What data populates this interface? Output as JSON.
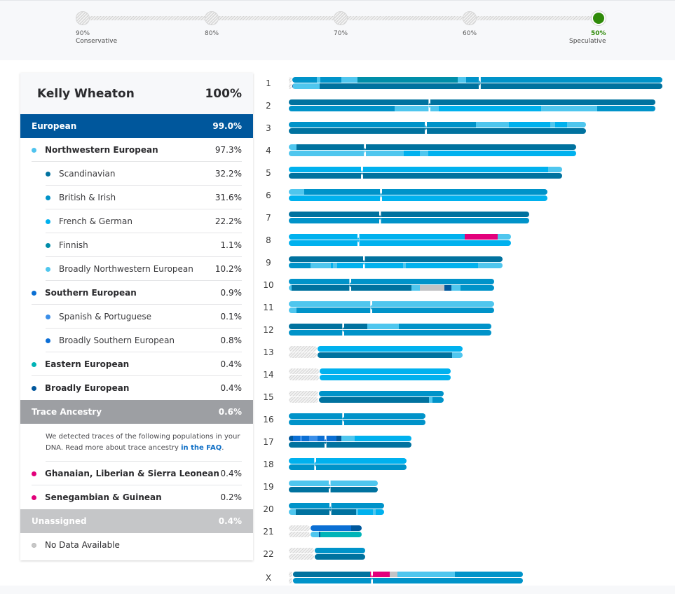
{
  "confidence": {
    "stops": [
      {
        "value": "90%",
        "sublabel": "Conservative",
        "active": false
      },
      {
        "value": "80%",
        "sublabel": "",
        "active": false
      },
      {
        "value": "70%",
        "sublabel": "",
        "active": false
      },
      {
        "value": "60%",
        "sublabel": "",
        "active": false
      },
      {
        "value": "50%",
        "sublabel": "Speculative",
        "active": true
      }
    ],
    "active_color": "#2f8a09"
  },
  "panel": {
    "name": "Kelly Wheaton",
    "total": "100%",
    "european": {
      "label": "European",
      "value": "99.0%"
    },
    "rows_european": [
      {
        "level": 1,
        "label": "Northwestern European",
        "value": "97.3%",
        "color": "#4fc3ee"
      },
      {
        "level": 2,
        "label": "Scandinavian",
        "value": "32.2%",
        "color": "#00729f"
      },
      {
        "level": 2,
        "label": "British & Irish",
        "value": "31.6%",
        "color": "#0092c8"
      },
      {
        "level": 2,
        "label": "French & German",
        "value": "22.2%",
        "color": "#00b0ee"
      },
      {
        "level": 2,
        "label": "Finnish",
        "value": "1.1%",
        "color": "#008ca8"
      },
      {
        "level": 2,
        "label": "Broadly Northwestern European",
        "value": "10.2%",
        "color": "#4fc6ee"
      },
      {
        "level": 1,
        "label": "Southern European",
        "value": "0.9%",
        "color": "#0a6fd3"
      },
      {
        "level": 2,
        "label": "Spanish & Portuguese",
        "value": "0.1%",
        "color": "#3b8ee8"
      },
      {
        "level": 2,
        "label": "Broadly Southern European",
        "value": "0.8%",
        "color": "#0b6ed6"
      },
      {
        "level": 1,
        "label": "Eastern European",
        "value": "0.4%",
        "color": "#00b3b6"
      },
      {
        "level": 1,
        "label": "Broadly European",
        "value": "0.4%",
        "color": "#00579c"
      }
    ],
    "trace": {
      "label": "Trace Ancestry",
      "value": "0.6%"
    },
    "trace_note": "We detected traces of the following populations in your DNA. Read more about trace ancestry ",
    "trace_link": "in the FAQ",
    "trace_note_end": ".",
    "rows_trace": [
      {
        "level": 1,
        "label": "Ghanaian, Liberian & Sierra Leonean",
        "value": "0.4%",
        "color": "#e2007a"
      },
      {
        "level": 1,
        "label": "Senegambian & Guinean",
        "value": "0.2%",
        "color": "#e2007a"
      }
    ],
    "unassigned": {
      "label": "Unassigned",
      "value": "0.4%"
    },
    "no_data": {
      "label": "No Data Available",
      "color": "#c8c8c8"
    }
  },
  "colors": {
    "SC": "#00729f",
    "BI": "#0093c9",
    "FG": "#00b1ee",
    "FI": "#008ea9",
    "BNW": "#4fc6ee",
    "SP": "#3b8ee8",
    "BS": "#0b6fd4",
    "EE": "#00b4b8",
    "BE": "#00589d",
    "AF": "#e3007b",
    "UN": "#c2c3c5"
  },
  "chart_data": {
    "type": "chromosome-painting",
    "title": "Ancestry Composition chromosome painting",
    "unit": "fraction of chromosome 1 length",
    "chromosomes": [
      {
        "label": "1",
        "length": 1.0,
        "centromere": 0.51,
        "nodata_start": 0.01,
        "strands": [
          [
            [
              0.0,
              0.01,
              "BNW"
            ],
            [
              0.01,
              0.075,
              "BI"
            ],
            [
              0.075,
              0.084,
              "BNW"
            ],
            [
              0.084,
              0.14,
              "BI"
            ],
            [
              0.14,
              0.183,
              "BNW"
            ],
            [
              0.183,
              0.452,
              "FI"
            ],
            [
              0.452,
              0.474,
              "BNW"
            ],
            [
              0.474,
              1.0,
              "BI"
            ]
          ],
          [
            [
              0.0,
              0.012,
              "BE"
            ],
            [
              0.012,
              0.083,
              "BNW"
            ],
            [
              0.083,
              1.0,
              "SC"
            ]
          ]
        ]
      },
      {
        "label": "2",
        "length": 0.981,
        "centromere": 0.376,
        "strands": [
          [
            [
              0.0,
              0.981,
              "SC"
            ]
          ],
          [
            [
              0.0,
              0.283,
              "BI"
            ],
            [
              0.283,
              0.381,
              "BNW"
            ],
            [
              0.381,
              0.401,
              "BNW"
            ],
            [
              0.401,
              0.637,
              "FG"
            ],
            [
              0.637,
              0.676,
              "FG"
            ],
            [
              0.676,
              0.826,
              "BNW"
            ],
            [
              0.826,
              0.981,
              "BI"
            ]
          ]
        ]
      },
      {
        "label": "3",
        "length": 0.795,
        "centromere": 0.366,
        "strands": [
          [
            [
              0.0,
              0.5,
              "BI"
            ],
            [
              0.5,
              0.59,
              "BNW"
            ],
            [
              0.59,
              0.7,
              "FG"
            ],
            [
              0.7,
              0.713,
              "BNW"
            ],
            [
              0.713,
              0.744,
              "FG"
            ],
            [
              0.744,
              0.795,
              "BNW"
            ]
          ],
          [
            [
              0.0,
              0.795,
              "SC"
            ]
          ]
        ]
      },
      {
        "label": "4",
        "length": 0.77,
        "centromere": 0.203,
        "strands": [
          [
            [
              0.0,
              0.021,
              "BNW"
            ],
            [
              0.021,
              0.77,
              "SC"
            ]
          ],
          [
            [
              0.0,
              0.307,
              "BNW"
            ],
            [
              0.307,
              0.351,
              "FG"
            ],
            [
              0.351,
              0.374,
              "BNW"
            ],
            [
              0.374,
              0.77,
              "FG"
            ]
          ]
        ]
      },
      {
        "label": "5",
        "length": 0.732,
        "centromere": 0.195,
        "strands": [
          [
            [
              0.0,
              0.695,
              "FG"
            ],
            [
              0.695,
              0.732,
              "BNW"
            ]
          ],
          [
            [
              0.0,
              0.732,
              "SC"
            ]
          ]
        ]
      },
      {
        "label": "6",
        "length": 0.692,
        "centromere": 0.246,
        "strands": [
          [
            [
              0.0,
              0.042,
              "BNW"
            ],
            [
              0.042,
              0.692,
              "BI"
            ]
          ],
          [
            [
              0.0,
              0.692,
              "FG"
            ]
          ]
        ]
      },
      {
        "label": "7",
        "length": 0.643,
        "centromere": 0.243,
        "strands": [
          [
            [
              0.0,
              0.643,
              "SC"
            ]
          ],
          [
            [
              0.0,
              0.643,
              "BI"
            ]
          ]
        ]
      },
      {
        "label": "8",
        "length": 0.594,
        "centromere": 0.185,
        "strands": [
          [
            [
              0.0,
              0.47,
              "FG"
            ],
            [
              0.47,
              0.56,
              "AF"
            ],
            [
              0.56,
              0.594,
              "BNW"
            ]
          ],
          [
            [
              0.0,
              0.594,
              "FG"
            ]
          ]
        ]
      },
      {
        "label": "9",
        "length": 0.573,
        "centromere": 0.2,
        "strands": [
          [
            [
              0.0,
              0.573,
              "SC"
            ]
          ],
          [
            [
              0.0,
              0.058,
              "BI"
            ],
            [
              0.058,
              0.113,
              "BNW"
            ],
            [
              0.113,
              0.119,
              "FG"
            ],
            [
              0.119,
              0.129,
              "BNW"
            ],
            [
              0.129,
              0.305,
              "FG"
            ],
            [
              0.305,
              0.313,
              "BNW"
            ],
            [
              0.313,
              0.507,
              "FG"
            ],
            [
              0.507,
              0.573,
              "BNW"
            ]
          ]
        ]
      },
      {
        "label": "10",
        "length": 0.55,
        "centromere": 0.164,
        "strands": [
          [
            [
              0.0,
              0.55,
              "BI"
            ]
          ],
          [
            [
              0.0,
              0.008,
              "BNW"
            ],
            [
              0.008,
              0.329,
              "SC"
            ],
            [
              0.329,
              0.35,
              "BNW"
            ],
            [
              0.35,
              0.416,
              "UN"
            ],
            [
              0.416,
              0.435,
              "BE"
            ],
            [
              0.435,
              0.46,
              "BNW"
            ],
            [
              0.46,
              0.55,
              "BI"
            ]
          ]
        ]
      },
      {
        "label": "11",
        "length": 0.55,
        "centromere": 0.22,
        "strands": [
          [
            [
              0.0,
              0.55,
              "BNW"
            ]
          ],
          [
            [
              0.0,
              0.02,
              "BNW"
            ],
            [
              0.02,
              0.55,
              "BI"
            ]
          ]
        ]
      },
      {
        "label": "12",
        "length": 0.543,
        "centromere": 0.145,
        "strands": [
          [
            [
              0.0,
              0.21,
              "SC"
            ],
            [
              0.21,
              0.295,
              "BNW"
            ],
            [
              0.295,
              0.543,
              "BI"
            ]
          ],
          [
            [
              0.0,
              0.543,
              "BI"
            ]
          ]
        ]
      },
      {
        "label": "13",
        "length": 0.466,
        "centromere": 0.0,
        "nodata_start": 0.077,
        "strands": [
          [
            [
              0.077,
              0.466,
              "FG"
            ]
          ],
          [
            [
              0.077,
              0.438,
              "SC"
            ],
            [
              0.438,
              0.466,
              "BNW"
            ]
          ]
        ]
      },
      {
        "label": "14",
        "length": 0.434,
        "centromere": 0.0,
        "nodata_start": 0.082,
        "strands": [
          [
            [
              0.082,
              0.434,
              "FG"
            ]
          ],
          [
            [
              0.082,
              0.434,
              "FG"
            ]
          ]
        ]
      },
      {
        "label": "15",
        "length": 0.415,
        "centromere": 0.0,
        "nodata_start": 0.08,
        "strands": [
          [
            [
              0.08,
              0.415,
              "BI"
            ]
          ],
          [
            [
              0.08,
              0.376,
              "SC"
            ],
            [
              0.376,
              0.385,
              "BNW"
            ],
            [
              0.385,
              0.415,
              "BI"
            ]
          ]
        ]
      },
      {
        "label": "16",
        "length": 0.366,
        "centromere": 0.145,
        "strands": [
          [
            [
              0.0,
              0.366,
              "BI"
            ]
          ],
          [
            [
              0.0,
              0.366,
              "BI"
            ]
          ]
        ]
      },
      {
        "label": "17",
        "length": 0.328,
        "centromere": 0.097,
        "strands": [
          [
            [
              0.0,
              0.012,
              "BE"
            ],
            [
              0.012,
              0.03,
              "BS"
            ],
            [
              0.03,
              0.036,
              "SP"
            ],
            [
              0.036,
              0.055,
              "BS"
            ],
            [
              0.055,
              0.076,
              "SP"
            ],
            [
              0.076,
              0.097,
              "BS"
            ],
            [
              0.097,
              0.128,
              "BS"
            ],
            [
              0.128,
              0.14,
              "BE"
            ],
            [
              0.14,
              0.177,
              "BNW"
            ],
            [
              0.177,
              0.328,
              "FG"
            ]
          ],
          [
            [
              0.0,
              0.328,
              "SC"
            ]
          ]
        ]
      },
      {
        "label": "18",
        "length": 0.316,
        "centromere": 0.07,
        "strands": [
          [
            [
              0.0,
              0.316,
              "FG"
            ]
          ],
          [
            [
              0.0,
              0.316,
              "BI"
            ]
          ]
        ]
      },
      {
        "label": "19",
        "length": 0.239,
        "centromere": 0.108,
        "strands": [
          [
            [
              0.0,
              0.239,
              "BNW"
            ]
          ],
          [
            [
              0.0,
              0.239,
              "SC"
            ]
          ]
        ]
      },
      {
        "label": "20",
        "length": 0.256,
        "centromere": 0.11,
        "strands": [
          [
            [
              0.0,
              0.256,
              "BI"
            ]
          ],
          [
            [
              0.0,
              0.019,
              "BNW"
            ],
            [
              0.019,
              0.18,
              "SC"
            ],
            [
              0.18,
              0.185,
              "BNW"
            ],
            [
              0.185,
              0.2,
              "FG"
            ],
            [
              0.2,
              0.225,
              "FG"
            ],
            [
              0.225,
              0.233,
              "BNW"
            ],
            [
              0.233,
              0.256,
              "FG"
            ]
          ]
        ]
      },
      {
        "label": "21",
        "length": 0.195,
        "centromere": 0.0,
        "nodata_start": 0.058,
        "strands": [
          [
            [
              0.058,
              0.167,
              "BS"
            ],
            [
              0.167,
              0.195,
              "BE"
            ]
          ],
          [
            [
              0.058,
              0.08,
              "BNW"
            ],
            [
              0.08,
              0.084,
              "BE"
            ],
            [
              0.084,
              0.195,
              "EE"
            ]
          ]
        ]
      },
      {
        "label": "22",
        "length": 0.204,
        "centromere": 0.0,
        "nodata_start": 0.069,
        "strands": [
          [
            [
              0.069,
              0.204,
              "BI"
            ]
          ],
          [
            [
              0.069,
              0.204,
              "SC"
            ]
          ]
        ]
      },
      {
        "label": "X",
        "length": 0.627,
        "centromere": 0.222,
        "nodata_start": 0.011,
        "strands": [
          [
            [
              0.011,
              0.226,
              "SC"
            ],
            [
              0.226,
              0.222,
              "AF"
            ],
            [
              0.218,
              0.27,
              "AF"
            ],
            [
              0.27,
              0.29,
              "UN"
            ],
            [
              0.29,
              0.445,
              "BNW"
            ],
            [
              0.445,
              0.627,
              "BI"
            ]
          ],
          [
            [
              0.011,
              0.627,
              "BI"
            ]
          ]
        ]
      }
    ]
  }
}
